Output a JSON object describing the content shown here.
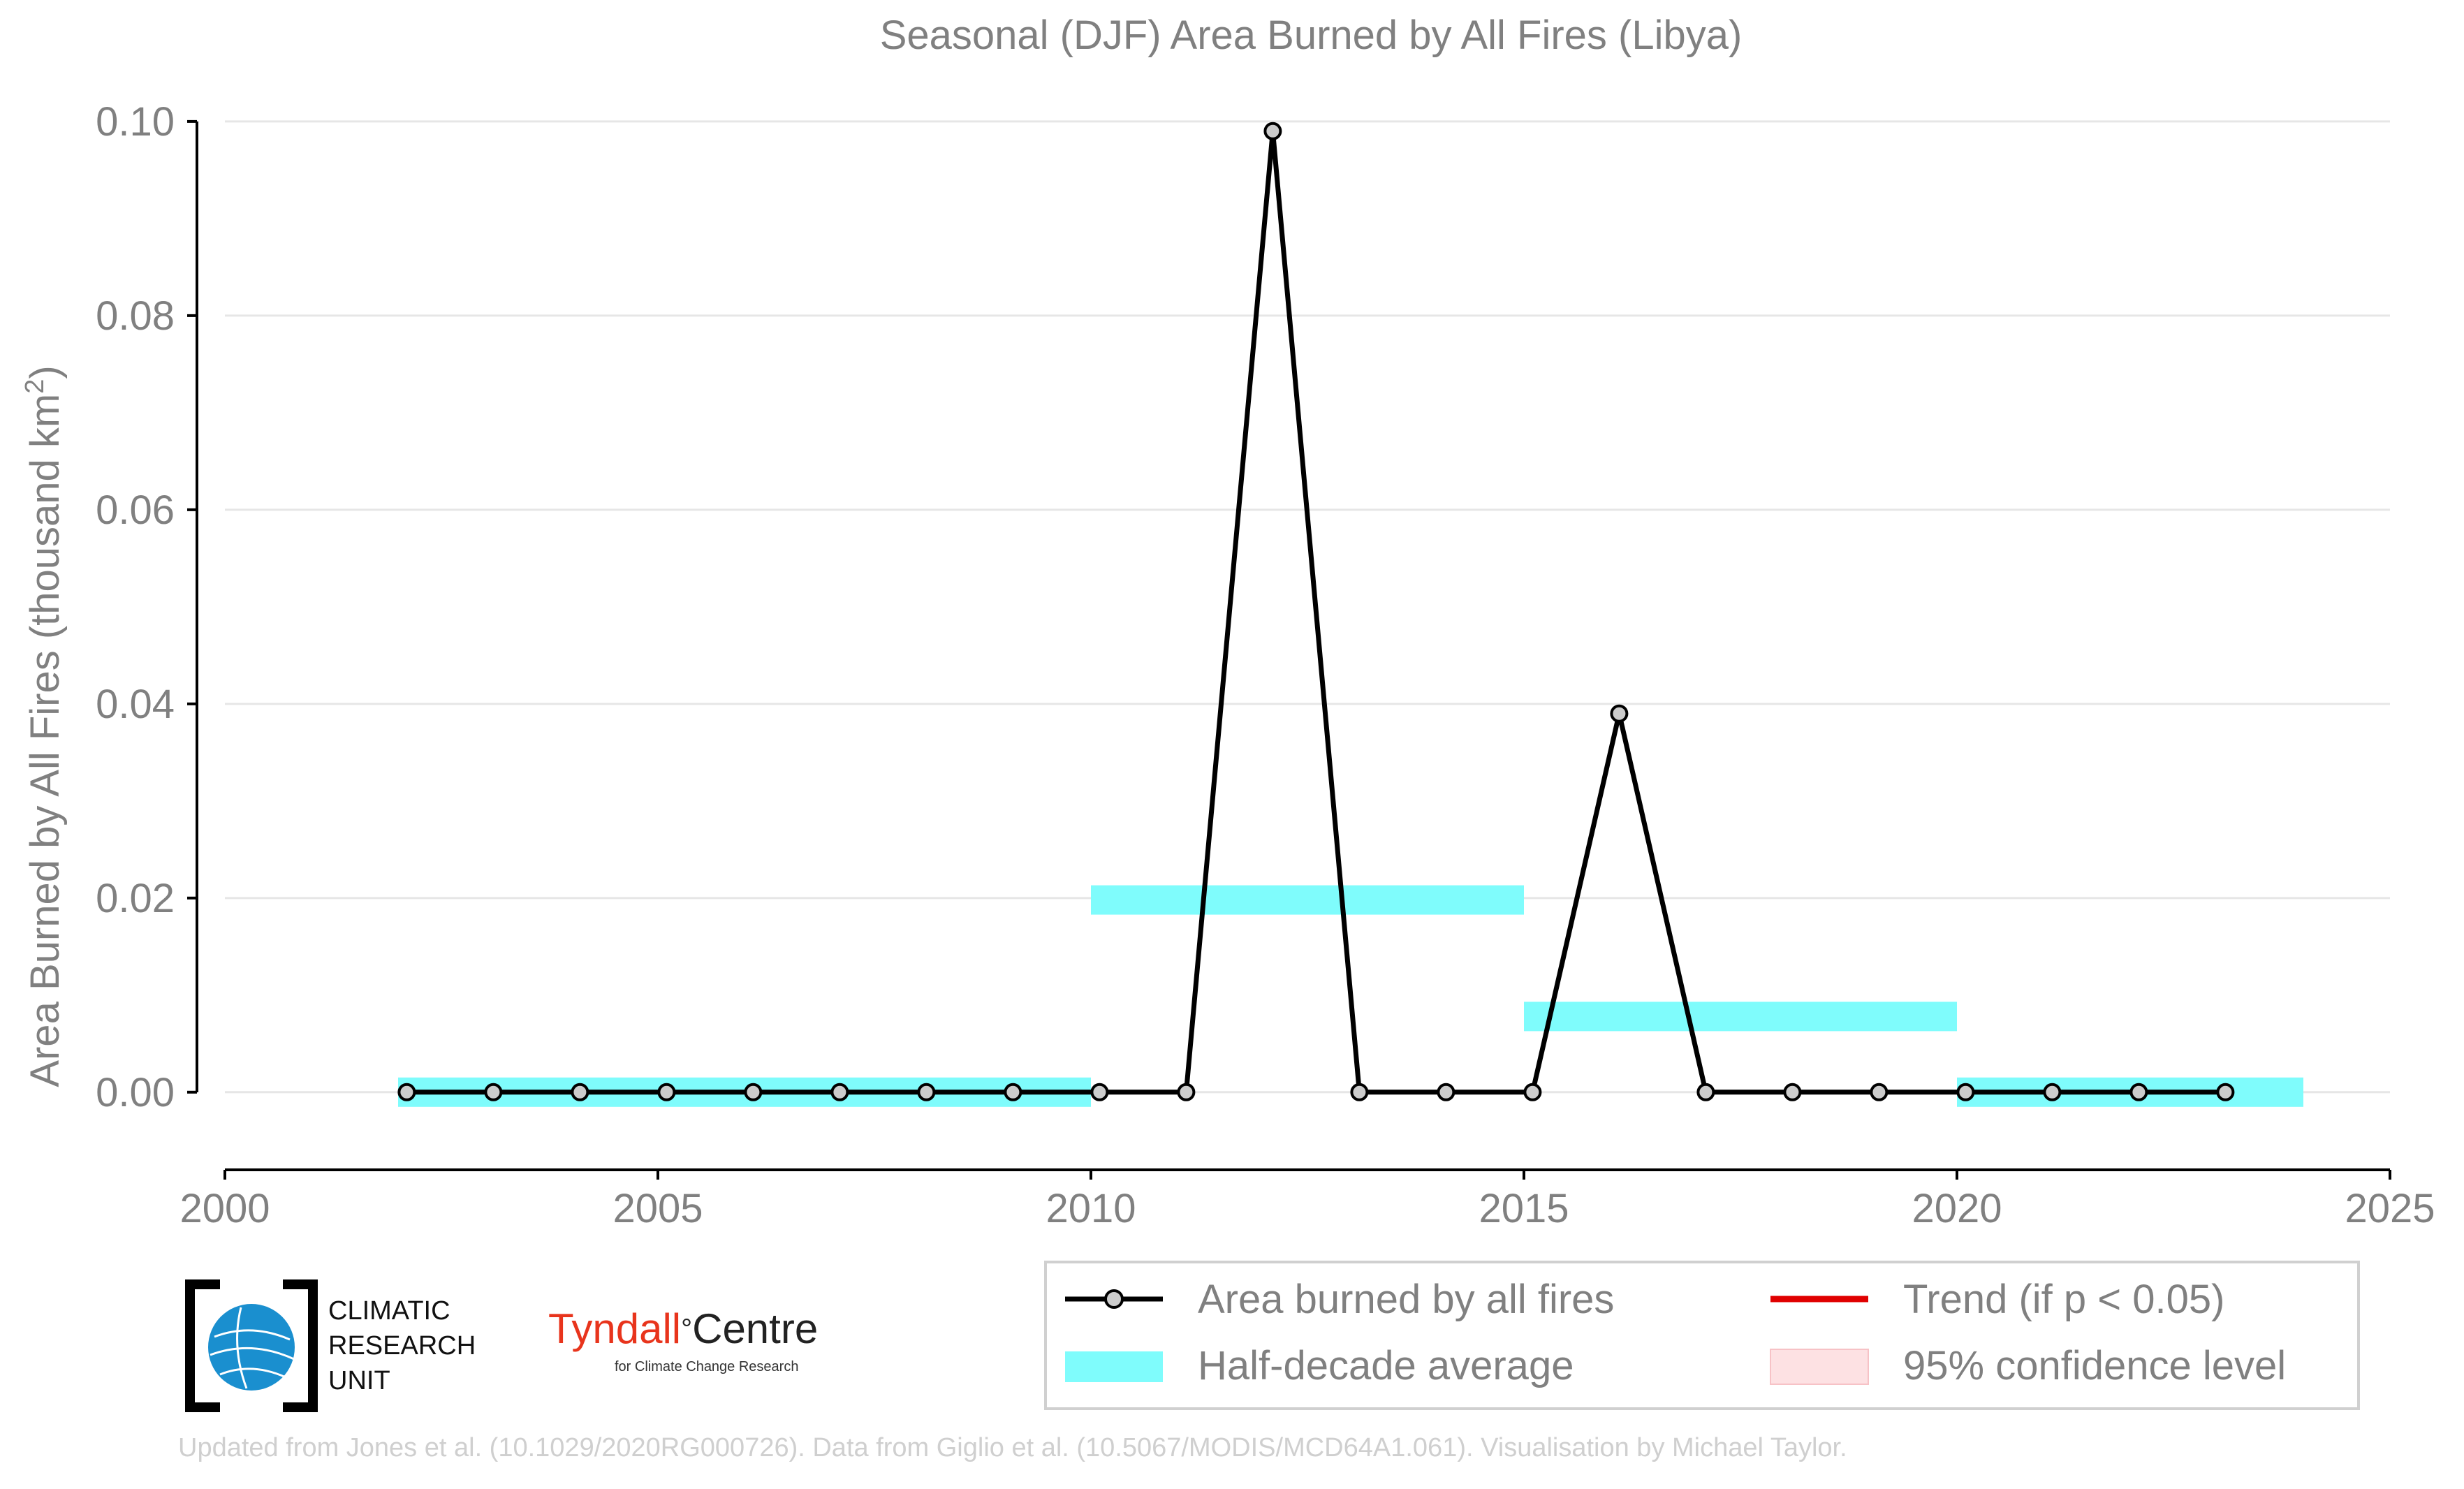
{
  "chart_data": {
    "type": "line",
    "title": "Seasonal (DJF) Area Burned by All Fires (Libya)",
    "ylabel_main": "Area Burned by All Fires (thousand km",
    "ylabel_sup": "2",
    "ylabel_close": ")",
    "xlabel": "",
    "xlim": [
      2000,
      2025
    ],
    "ylim": [
      -0.008,
      0.101
    ],
    "x_ticks": [
      2000,
      2005,
      2010,
      2015,
      2020,
      2025
    ],
    "y_ticks": [
      0.0,
      0.02,
      0.04,
      0.06,
      0.08,
      0.1
    ],
    "y_tick_labels": [
      "0.00",
      "0.02",
      "0.04",
      "0.06",
      "0.08",
      "0.10"
    ],
    "grid": "horizontal",
    "series": [
      {
        "name": "Area burned by all fires",
        "color": "#000000",
        "marker_fill": "#cccccc",
        "x": [
          2002.1,
          2003.1,
          2004.1,
          2005.1,
          2006.1,
          2007.1,
          2008.1,
          2009.1,
          2010.1,
          2011.1,
          2012.1,
          2013.1,
          2014.1,
          2015.1,
          2016.1,
          2017.1,
          2018.1,
          2019.1,
          2020.1,
          2021.1,
          2022.1,
          2023.1
        ],
        "values": [
          0,
          0,
          0,
          0,
          0,
          0,
          0,
          0,
          0,
          0,
          0.099,
          0,
          0,
          0,
          0.039,
          0,
          0,
          0,
          0,
          0,
          0,
          0
        ]
      }
    ],
    "half_decade_average": {
      "name": "Half-decade average",
      "color": "#7ffcfc",
      "segments": [
        {
          "x_start": 2002,
          "x_end": 2010,
          "value": 0.0
        },
        {
          "x_start": 2010,
          "x_end": 2015,
          "value": 0.0198
        },
        {
          "x_start": 2015,
          "x_end": 2020,
          "value": 0.0078
        },
        {
          "x_start": 2020,
          "x_end": 2024,
          "value": 0.0
        }
      ]
    },
    "legend": {
      "placement": "bottom-right",
      "entries": [
        {
          "label": "Area burned by all fires",
          "kind": "line-marker",
          "color": "#000000"
        },
        {
          "label": "Trend (if p < 0.05)",
          "kind": "line",
          "color": "#e00000"
        },
        {
          "label": "Half-decade average",
          "kind": "band",
          "color": "#7ffcfc"
        },
        {
          "label": "95% confidence level",
          "kind": "patch",
          "color": "#fde1e3"
        }
      ]
    },
    "colors": {
      "text": "#808080",
      "axis": "#000000",
      "grid": "#e6e6e6",
      "legend_border": "#d0d0d0"
    }
  },
  "logos": {
    "cru_text": "CLIMATIC\nRESEARCH\nUNIT",
    "cru_globe_color": "#1a8fcf",
    "tyndall_red": "Tyndall",
    "tyndall_degree": "°",
    "tyndall_dark": "Centre",
    "tyndall_sub": "for Climate Change Research"
  },
  "credit": "Updated from Jones et al. (10.1029/2020RG000726). Data from Giglio et al. (10.5067/MODIS/MCD64A1.061). Visualisation by Michael Taylor."
}
